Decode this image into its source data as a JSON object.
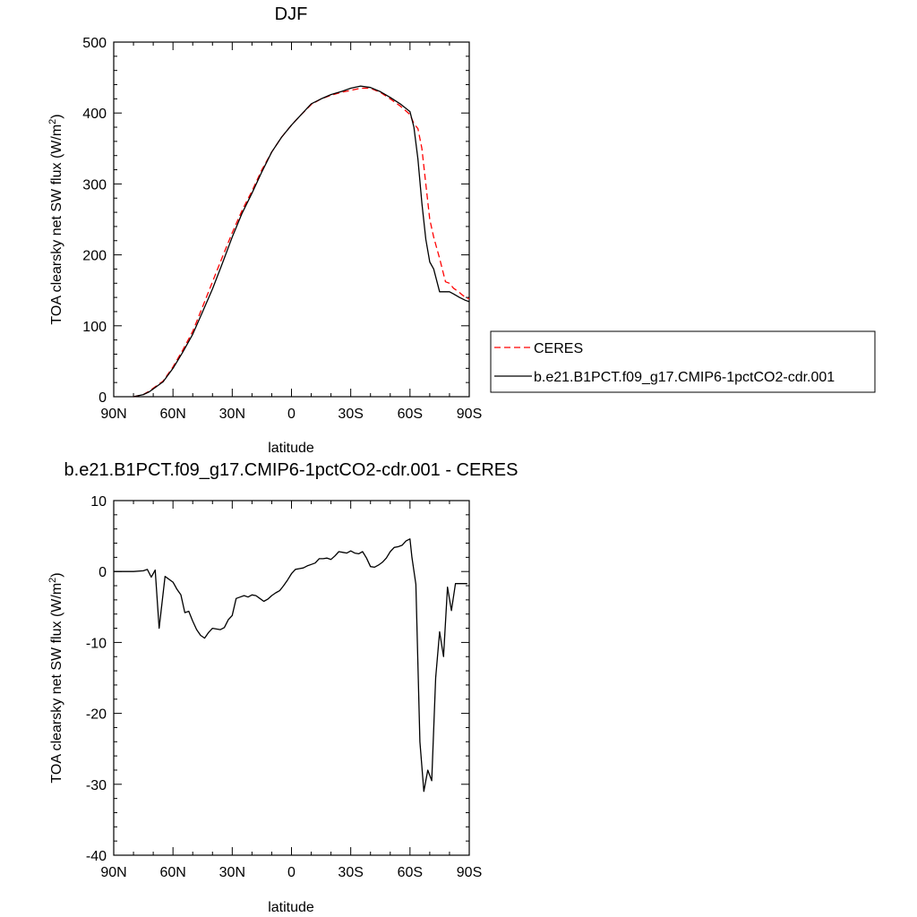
{
  "chart_data": [
    {
      "type": "line",
      "title": "DJF",
      "xlabel": "latitude",
      "ylabel": "TOA clearsky net SW flux (W/m²)",
      "ylabel_base": "TOA clearsky net SW flux (W/m",
      "ylabel_sup": "2",
      "ylabel_end": ")",
      "xlim": [
        90,
        -90
      ],
      "ylim": [
        0,
        500
      ],
      "x_ticks": [
        90,
        60,
        30,
        0,
        -30,
        -60,
        -90
      ],
      "x_tick_labels": [
        "90N",
        "60N",
        "30N",
        "0",
        "30S",
        "60S",
        "90S"
      ],
      "y_ticks": [
        0,
        100,
        200,
        300,
        400,
        500
      ],
      "y_tick_labels": [
        "0",
        "100",
        "200",
        "300",
        "400",
        "500"
      ],
      "grid": false,
      "legend_position": "right",
      "series": [
        {
          "name": "CERES",
          "color": "#ff0000",
          "dash": "dashed",
          "x": [
            80,
            75,
            72,
            70,
            68,
            65,
            60,
            55,
            50,
            45,
            40,
            35,
            30,
            25,
            20,
            15,
            10,
            5,
            0,
            -5,
            -10,
            -15,
            -20,
            -25,
            -30,
            -35,
            -40,
            -45,
            -50,
            -55,
            -60,
            -62,
            -64,
            -66,
            -68,
            -70,
            -72,
            -75,
            -78,
            -80,
            -82,
            -85,
            -88,
            -90
          ],
          "y": [
            0,
            3,
            8,
            12,
            16,
            22,
            42,
            66,
            92,
            127,
            162,
            197,
            231,
            263,
            290,
            320,
            345,
            366,
            383,
            398,
            412,
            420,
            425,
            429,
            432,
            435,
            435,
            429,
            420,
            410,
            398,
            385,
            378,
            350,
            300,
            250,
            225,
            195,
            162,
            160,
            153,
            147,
            140,
            138
          ]
        },
        {
          "name": "b.e21.B1PCT.f09_g17.CMIP6-1pctCO2-cdr.001",
          "color": "#000000",
          "dash": "solid",
          "x": [
            80,
            75,
            72,
            70,
            68,
            65,
            60,
            55,
            50,
            45,
            40,
            35,
            30,
            25,
            20,
            15,
            10,
            5,
            0,
            -5,
            -10,
            -15,
            -20,
            -25,
            -30,
            -35,
            -40,
            -45,
            -50,
            -55,
            -60,
            -62,
            -64,
            -66,
            -68,
            -70,
            -72,
            -75,
            -78,
            -80,
            -82,
            -85,
            -88,
            -90
          ],
          "y": [
            0,
            3,
            7,
            11,
            15,
            21,
            40,
            63,
            88,
            120,
            152,
            188,
            225,
            259,
            287,
            317,
            345,
            366,
            383,
            398,
            413,
            420,
            426,
            430,
            435,
            438,
            436,
            430,
            422,
            413,
            402,
            380,
            335,
            273,
            222,
            190,
            180,
            148,
            148,
            148,
            145,
            140,
            136,
            134
          ]
        }
      ]
    },
    {
      "type": "line",
      "title": "b.e21.B1PCT.f09_g17.CMIP6-1pctCO2-cdr.001 - CERES",
      "xlabel": "latitude",
      "ylabel": "TOA clearsky net SW flux (W/m²)",
      "ylabel_base": "TOA clearsky net SW flux (W/m",
      "ylabel_sup": "2",
      "ylabel_end": ")",
      "xlim": [
        90,
        -90
      ],
      "ylim": [
        -40,
        10
      ],
      "x_ticks": [
        90,
        60,
        30,
        0,
        -30,
        -60,
        -90
      ],
      "x_tick_labels": [
        "90N",
        "60N",
        "30N",
        "0",
        "30S",
        "60S",
        "90S"
      ],
      "y_ticks": [
        -40,
        -30,
        -20,
        -10,
        0,
        10
      ],
      "y_tick_labels": [
        "-40",
        "-30",
        "-20",
        "-10",
        "0",
        "10"
      ],
      "grid": false,
      "series": [
        {
          "color": "#000000",
          "dash": "solid",
          "x": [
            90,
            85,
            80,
            75,
            73,
            71,
            69,
            67,
            64,
            60,
            58,
            56,
            54,
            52,
            50,
            48,
            46,
            44,
            42,
            40,
            38,
            36,
            34,
            32,
            30,
            28,
            26,
            24,
            22,
            20,
            18,
            16,
            14,
            12,
            10,
            8,
            6,
            4,
            2,
            0,
            -2,
            -4,
            -6,
            -8,
            -10,
            -12,
            -14,
            -16,
            -18,
            -20,
            -22,
            -24,
            -26,
            -28,
            -30,
            -32,
            -34,
            -36,
            -38,
            -40,
            -42,
            -44,
            -46,
            -48,
            -50,
            -52,
            -54,
            -56,
            -58,
            -60,
            -61,
            -63,
            -65,
            -67,
            -69,
            -71,
            -73,
            -75,
            -77,
            -79,
            -81,
            -83,
            -85,
            -87,
            -89
          ],
          "y": [
            0,
            0,
            0,
            0.1,
            0.3,
            -0.8,
            0.2,
            -8,
            -0.7,
            -1.5,
            -2.5,
            -3.3,
            -5.8,
            -5.6,
            -7,
            -8.2,
            -9,
            -9.4,
            -8.6,
            -8.0,
            -8.1,
            -8.2,
            -7.9,
            -6.8,
            -6.2,
            -3.8,
            -3.6,
            -3.4,
            -3.6,
            -3.3,
            -3.4,
            -3.8,
            -4.2,
            -3.9,
            -3.4,
            -3.0,
            -2.7,
            -2.0,
            -1.2,
            -0.3,
            0.3,
            0.4,
            0.5,
            0.8,
            1.0,
            1.2,
            1.8,
            1.8,
            1.9,
            1.7,
            2.2,
            2.8,
            2.7,
            2.6,
            2.9,
            2.6,
            2.5,
            2.8,
            1.9,
            0.7,
            0.6,
            0.9,
            1.3,
            1.9,
            2.8,
            3.4,
            3.5,
            3.7,
            4.3,
            4.6,
            2.0,
            -1.8,
            -24,
            -31,
            -28,
            -29.5,
            -15,
            -8.5,
            -12,
            -2.2,
            -5.5,
            -1.7,
            -1.7,
            -1.7,
            -1.7
          ]
        }
      ]
    }
  ]
}
